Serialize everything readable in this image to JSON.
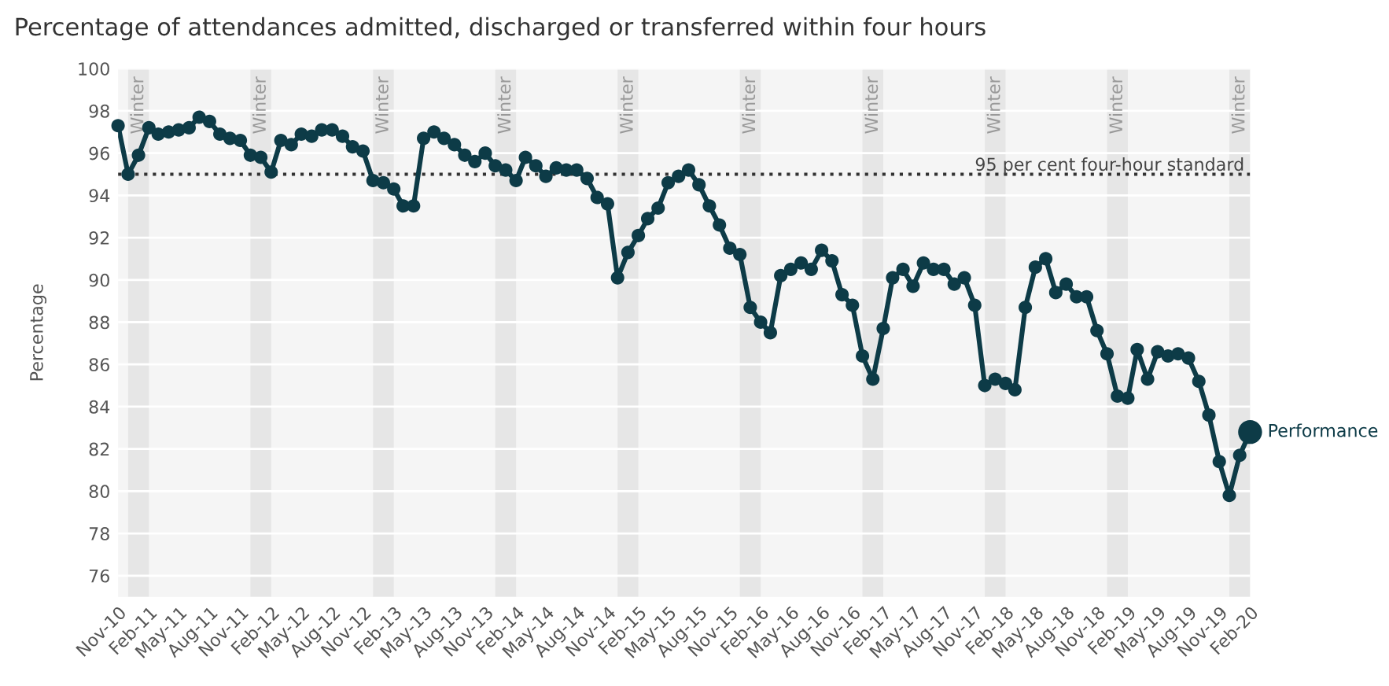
{
  "chart_data": {
    "type": "line",
    "title": "Percentage of attendances admitted, discharged or transferred within four hours",
    "ylabel": "Percentage",
    "x": [
      "2010-11",
      "2010-12",
      "2011-01",
      "2011-02",
      "2011-03",
      "2011-04",
      "2011-05",
      "2011-06",
      "2011-07",
      "2011-08",
      "2011-09",
      "2011-10",
      "2011-11",
      "2011-12",
      "2012-01",
      "2012-02",
      "2012-03",
      "2012-04",
      "2012-05",
      "2012-06",
      "2012-07",
      "2012-08",
      "2012-09",
      "2012-10",
      "2012-11",
      "2012-12",
      "2013-01",
      "2013-02",
      "2013-03",
      "2013-04",
      "2013-05",
      "2013-06",
      "2013-07",
      "2013-08",
      "2013-09",
      "2013-10",
      "2013-11",
      "2013-12",
      "2014-01",
      "2014-02",
      "2014-03",
      "2014-04",
      "2014-05",
      "2014-06",
      "2014-07",
      "2014-08",
      "2014-09",
      "2014-10",
      "2014-11",
      "2014-12",
      "2015-01",
      "2015-02",
      "2015-03",
      "2015-04",
      "2015-05",
      "2015-06",
      "2015-07",
      "2015-08",
      "2015-09",
      "2015-10",
      "2015-11",
      "2015-12",
      "2016-01",
      "2016-02",
      "2016-03",
      "2016-04",
      "2016-05",
      "2016-06",
      "2016-07",
      "2016-08",
      "2016-09",
      "2016-10",
      "2016-11",
      "2016-12",
      "2017-01",
      "2017-02",
      "2017-03",
      "2017-04",
      "2017-05",
      "2017-06",
      "2017-07",
      "2017-08",
      "2017-09",
      "2017-10",
      "2017-11",
      "2017-12",
      "2018-01",
      "2018-02",
      "2018-03",
      "2018-04",
      "2018-05",
      "2018-06",
      "2018-07",
      "2018-08",
      "2018-09",
      "2018-10",
      "2018-11",
      "2018-12",
      "2019-01",
      "2019-02",
      "2019-03",
      "2019-04",
      "2019-05",
      "2019-06",
      "2019-07",
      "2019-08",
      "2019-09",
      "2019-10",
      "2019-11",
      "2019-12",
      "2020-01",
      "2020-02"
    ],
    "series": [
      {
        "name": "Performance",
        "color": "#0d3b47",
        "values": [
          97.3,
          95.0,
          95.9,
          97.2,
          96.9,
          97.0,
          97.1,
          97.2,
          97.7,
          97.5,
          96.9,
          96.7,
          96.6,
          95.9,
          95.8,
          95.1,
          96.6,
          96.4,
          96.9,
          96.8,
          97.1,
          97.1,
          96.8,
          96.3,
          96.1,
          94.7,
          94.6,
          94.3,
          93.5,
          93.5,
          96.7,
          97.0,
          96.7,
          96.4,
          95.9,
          95.6,
          96.0,
          95.4,
          95.2,
          94.7,
          95.8,
          95.4,
          94.9,
          95.3,
          95.2,
          95.2,
          94.8,
          93.9,
          93.6,
          90.1,
          91.3,
          92.1,
          92.9,
          93.4,
          94.6,
          94.9,
          95.2,
          94.5,
          93.5,
          92.6,
          91.5,
          91.2,
          88.7,
          88.0,
          87.5,
          90.2,
          90.5,
          90.8,
          90.5,
          91.4,
          90.9,
          89.3,
          88.8,
          86.4,
          85.3,
          87.7,
          90.1,
          90.5,
          89.7,
          90.8,
          90.5,
          90.5,
          89.8,
          90.1,
          88.8,
          85.0,
          85.3,
          85.1,
          84.8,
          88.7,
          90.6,
          91.0,
          89.4,
          89.8,
          89.2,
          89.2,
          87.6,
          86.5,
          84.5,
          84.4,
          86.7,
          85.3,
          86.6,
          86.4,
          86.5,
          86.3,
          85.2,
          83.6,
          81.4,
          79.8,
          81.7,
          82.8
        ]
      }
    ],
    "xlim": [
      "2010-11",
      "2020-02"
    ],
    "xticks": [
      {
        "value": "2010-11",
        "label": "Nov-10"
      },
      {
        "value": "2011-02",
        "label": "Feb-11"
      },
      {
        "value": "2011-05",
        "label": "May-11"
      },
      {
        "value": "2011-08",
        "label": "Aug-11"
      },
      {
        "value": "2011-11",
        "label": "Nov-11"
      },
      {
        "value": "2012-02",
        "label": "Feb-12"
      },
      {
        "value": "2012-05",
        "label": "May-12"
      },
      {
        "value": "2012-08",
        "label": "Aug-12"
      },
      {
        "value": "2012-11",
        "label": "Nov-12"
      },
      {
        "value": "2013-02",
        "label": "Feb-13"
      },
      {
        "value": "2013-05",
        "label": "May-13"
      },
      {
        "value": "2013-08",
        "label": "Aug-13"
      },
      {
        "value": "2013-11",
        "label": "Nov-13"
      },
      {
        "value": "2014-02",
        "label": "Feb-14"
      },
      {
        "value": "2014-05",
        "label": "May-14"
      },
      {
        "value": "2014-08",
        "label": "Aug-14"
      },
      {
        "value": "2014-11",
        "label": "Nov-14"
      },
      {
        "value": "2015-02",
        "label": "Feb-15"
      },
      {
        "value": "2015-05",
        "label": "May-15"
      },
      {
        "value": "2015-08",
        "label": "Aug-15"
      },
      {
        "value": "2015-11",
        "label": "Nov-15"
      },
      {
        "value": "2016-02",
        "label": "Feb-16"
      },
      {
        "value": "2016-05",
        "label": "May-16"
      },
      {
        "value": "2016-08",
        "label": "Aug-16"
      },
      {
        "value": "2016-11",
        "label": "Nov-16"
      },
      {
        "value": "2017-02",
        "label": "Feb-17"
      },
      {
        "value": "2017-05",
        "label": "May-17"
      },
      {
        "value": "2017-08",
        "label": "Aug-17"
      },
      {
        "value": "2017-11",
        "label": "Nov-17"
      },
      {
        "value": "2018-02",
        "label": "Feb-18"
      },
      {
        "value": "2018-05",
        "label": "May-18"
      },
      {
        "value": "2018-08",
        "label": "Aug-18"
      },
      {
        "value": "2018-11",
        "label": "Nov-18"
      },
      {
        "value": "2019-02",
        "label": "Feb-19"
      },
      {
        "value": "2019-05",
        "label": "May-19"
      },
      {
        "value": "2019-08",
        "label": "Aug-19"
      },
      {
        "value": "2019-11",
        "label": "Nov-19"
      },
      {
        "value": "2020-02",
        "label": "Feb-20"
      }
    ],
    "ylim": [
      75,
      100
    ],
    "yticks": [
      76,
      78,
      80,
      82,
      84,
      86,
      88,
      90,
      92,
      94,
      96,
      98,
      100
    ],
    "ref_lines": [
      {
        "axis": "y",
        "value": 95,
        "label": "95 per cent four-hour standard",
        "line_style": "dotted",
        "color": "#333333"
      }
    ],
    "bands": [
      {
        "axis": "x",
        "from": "2010-12",
        "to": "2011-02",
        "label": "Winter",
        "color": "#e6e6e6"
      },
      {
        "axis": "x",
        "from": "2011-12",
        "to": "2012-02",
        "label": "Winter",
        "color": "#e6e6e6"
      },
      {
        "axis": "x",
        "from": "2012-12",
        "to": "2013-02",
        "label": "Winter",
        "color": "#e6e6e6"
      },
      {
        "axis": "x",
        "from": "2013-12",
        "to": "2014-02",
        "label": "Winter",
        "color": "#e6e6e6"
      },
      {
        "axis": "x",
        "from": "2014-12",
        "to": "2015-02",
        "label": "Winter",
        "color": "#e6e6e6"
      },
      {
        "axis": "x",
        "from": "2015-12",
        "to": "2016-02",
        "label": "Winter",
        "color": "#e6e6e6"
      },
      {
        "axis": "x",
        "from": "2016-12",
        "to": "2017-02",
        "label": "Winter",
        "color": "#e6e6e6"
      },
      {
        "axis": "x",
        "from": "2017-12",
        "to": "2018-02",
        "label": "Winter",
        "color": "#e6e6e6"
      },
      {
        "axis": "x",
        "from": "2018-12",
        "to": "2019-02",
        "label": "Winter",
        "color": "#e6e6e6"
      },
      {
        "axis": "x",
        "from": "2019-12",
        "to": "2020-02",
        "label": "Winter",
        "color": "#e6e6e6"
      }
    ],
    "grid": "y",
    "marker": "circle",
    "line_style": "solid",
    "legend": false
  }
}
